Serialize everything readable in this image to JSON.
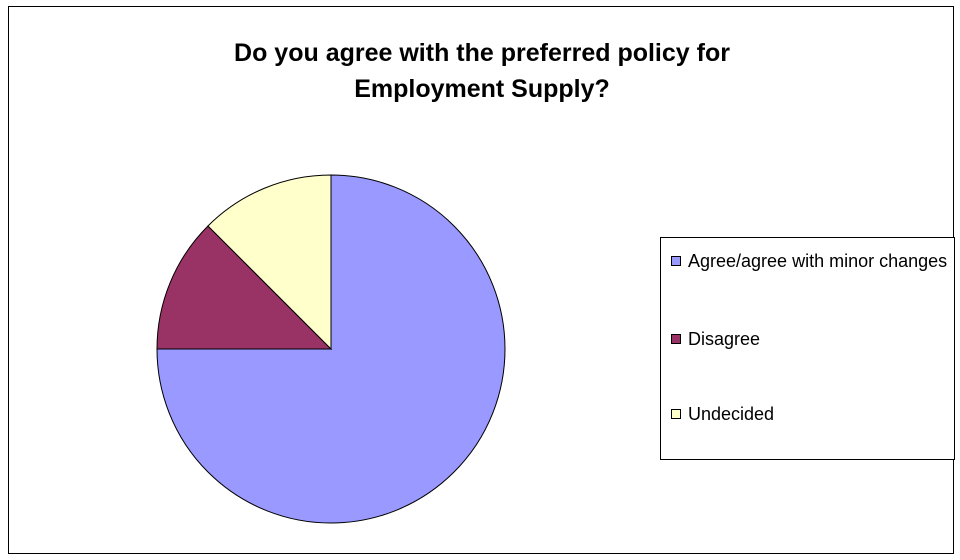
{
  "chart_data": {
    "type": "pie",
    "title_lines": [
      "Do you agree with the preferred policy for",
      "Employment Supply?"
    ],
    "categories": [
      "Agree/agree with minor changes",
      "Disagree",
      "Undecided"
    ],
    "values": [
      75,
      12.5,
      12.5
    ],
    "colors": [
      "#9999FF",
      "#993366",
      "#FFFFCC"
    ],
    "legend_position": "right"
  }
}
